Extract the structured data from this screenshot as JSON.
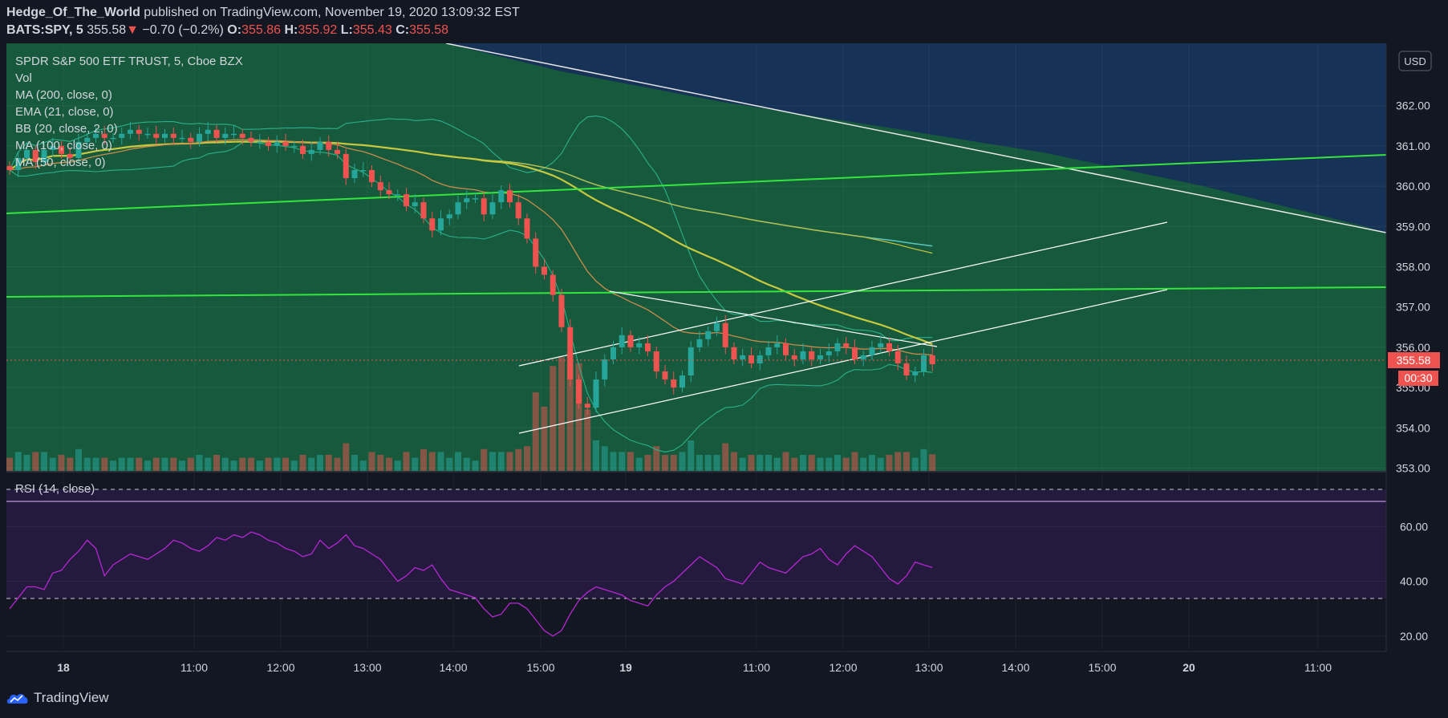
{
  "header": {
    "author": "Hedge_Of_The_World",
    "published_text": "published on TradingView.com, November 19, 2020 13:09:32 EST",
    "symbol": "BATS:SPY, 5",
    "last": "355.58",
    "change_arrow": "▼",
    "change": "−0.70 (−0.2%)",
    "open_label": "O:",
    "open": "355.86",
    "high_label": "H:",
    "high": "355.92",
    "low_label": "L:",
    "low": "355.43",
    "close_label": "C:",
    "close": "355.58"
  },
  "legend": {
    "title": "SPDR S&P 500 ETF TRUST, 5, Cboe BZX",
    "items": [
      "Vol",
      "MA (200, close, 0)",
      "EMA (21, close, 0)",
      "BB (20, close, 2, 0)",
      "MA (100, close, 0)",
      "MA (50, close, 0)"
    ]
  },
  "rsi_label": "RSI (14, close)",
  "currency_button": "USD",
  "price_badge": "355.58",
  "countdown_badge": "00:30",
  "logo_text": "TradingView",
  "colors": {
    "background": "#131722",
    "price_pane": "#17593c",
    "channel_fill": "#173257",
    "rsi_band": "#241a3d",
    "up": "#26a69a",
    "down": "#ef5350",
    "rsi_line": "#b627d4",
    "trendline_green": "#35e53f",
    "ma50": "#c8c93f",
    "ma100": "#bdbd44",
    "ma200": "#5cc6bd",
    "ema21": "#c88c4c",
    "bb": "#2bb08a"
  },
  "chart_data": [
    {
      "type": "candlestick",
      "title": "SPDR S&P 500 ETF TRUST, 5, Cboe BZX",
      "timeframe": "5 min",
      "ylim": [
        352.9,
        363.0
      ],
      "y_ticks": [
        "362.00",
        "361.00",
        "360.00",
        "359.00",
        "358.00",
        "357.00",
        "356.00",
        "355.00",
        "354.00",
        "353.00"
      ],
      "x_ticks": [
        "18",
        "11:00",
        "12:00",
        "13:00",
        "14:00",
        "15:00",
        "19",
        "11:00",
        "12:00",
        "13:00",
        "14:00",
        "15:00",
        "20",
        "11:00"
      ],
      "last_price": 355.58,
      "close_series": [
        360.4,
        360.7,
        360.9,
        360.6,
        360.9,
        361.0,
        360.8,
        360.7,
        361.1,
        361.2,
        361.3,
        361.2,
        361.2,
        361.3,
        361.4,
        361.3,
        361.3,
        361.2,
        361.3,
        361.2,
        361.2,
        361.1,
        361.3,
        361.4,
        361.2,
        361.3,
        361.3,
        361.2,
        361.1,
        361.1,
        361.0,
        361.1,
        361.0,
        361.0,
        360.8,
        360.9,
        361.1,
        360.9,
        360.8,
        360.2,
        360.4,
        360.4,
        360.1,
        359.9,
        359.8,
        359.8,
        359.5,
        359.6,
        359.2,
        358.9,
        359.2,
        359.3,
        359.6,
        359.7,
        359.7,
        359.3,
        359.6,
        359.9,
        359.6,
        359.2,
        358.7,
        358.0,
        357.8,
        357.3,
        356.5,
        355.2,
        354.6,
        354.5,
        355.2,
        355.7,
        356.0,
        356.3,
        356.0,
        356.1,
        355.9,
        355.4,
        355.2,
        355.0,
        355.3,
        356.0,
        356.2,
        356.4,
        356.6,
        356.0,
        355.7,
        355.8,
        355.6,
        355.8,
        356.0,
        356.1,
        355.8,
        355.7,
        355.9,
        355.7,
        355.8,
        355.9,
        356.1,
        356.0,
        355.7,
        355.8,
        356.0,
        356.1,
        355.9,
        355.6,
        355.3,
        355.4,
        355.8,
        355.58
      ],
      "indicators": [
        "MA (200, close, 0)",
        "EMA (21, close, 0)",
        "BB (20, close, 2, 0)",
        "MA (100, close, 0)",
        "MA (50, close, 0)"
      ]
    },
    {
      "type": "line",
      "title": "RSI (14, close)",
      "ylim": [
        15,
        75
      ],
      "y_ticks": [
        "60.00",
        "40.00",
        "20.00"
      ],
      "levels": [
        70,
        30
      ],
      "values": [
        30,
        34,
        38,
        38,
        37,
        43,
        44,
        48,
        51,
        55,
        52,
        42,
        46,
        48,
        50,
        49,
        48,
        50,
        52,
        55,
        54,
        52,
        51,
        53,
        56,
        55,
        57,
        56,
        58,
        57,
        55,
        54,
        52,
        51,
        49,
        50,
        55,
        52,
        54,
        57,
        53,
        52,
        50,
        48,
        44,
        40,
        42,
        45,
        44,
        46,
        41,
        37,
        36,
        35,
        34,
        30,
        27,
        28,
        32,
        32,
        30,
        26,
        22,
        20,
        22,
        28,
        33,
        36,
        38,
        37,
        36,
        35,
        33,
        32,
        31,
        35,
        38,
        40,
        43,
        46,
        49,
        47,
        45,
        41,
        40,
        39,
        43,
        47,
        45,
        44,
        43,
        46,
        49,
        50,
        52,
        48,
        46,
        50,
        53,
        51,
        49,
        45,
        41,
        39,
        42,
        47,
        46,
        45
      ]
    }
  ]
}
